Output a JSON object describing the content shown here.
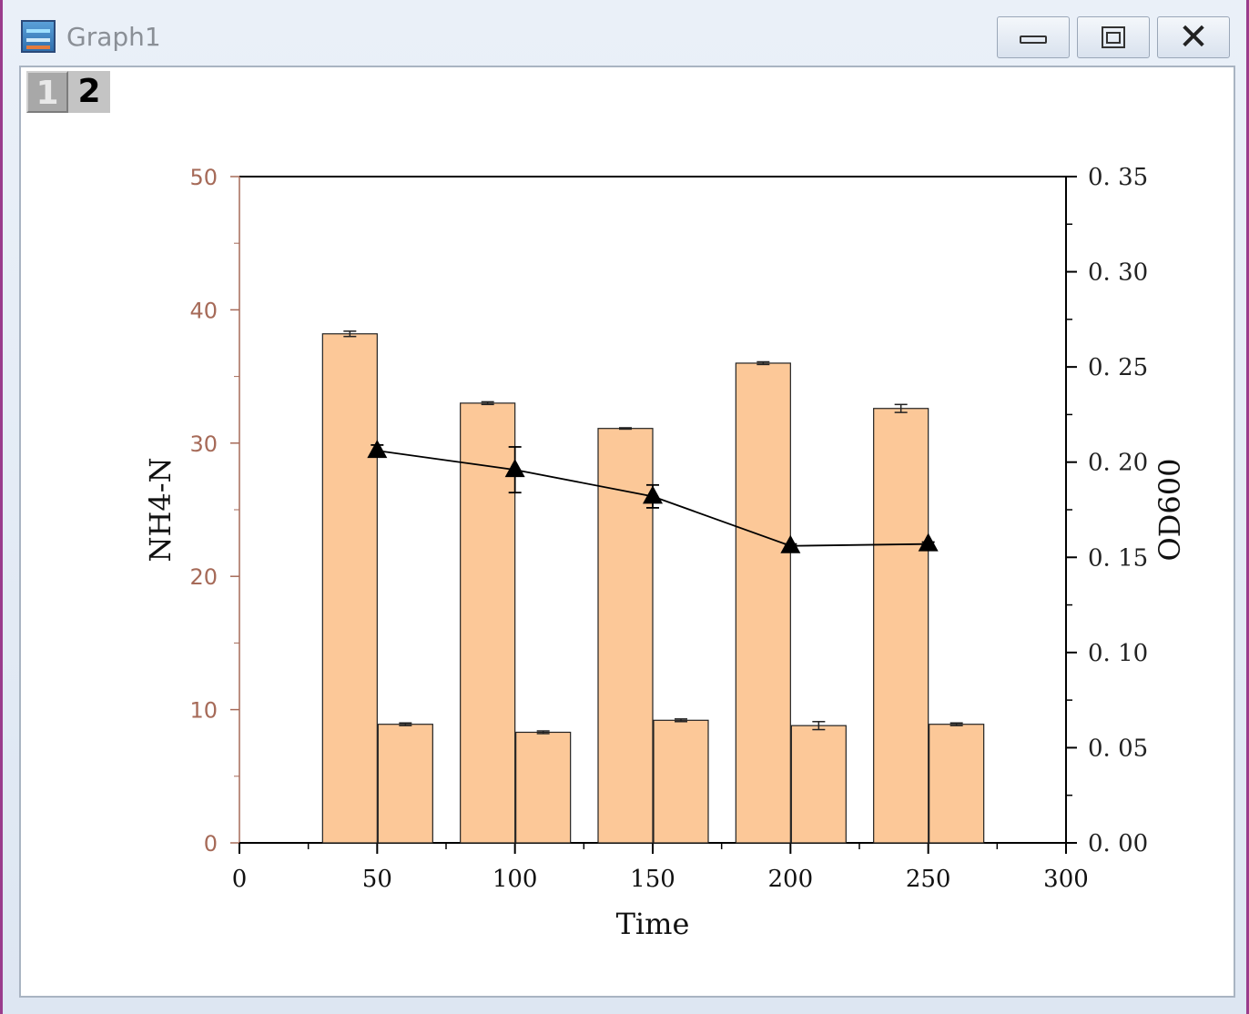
{
  "window": {
    "title": "Graph1",
    "icon": "graph-window-icon",
    "buttons": {
      "minimize": "minimize-icon",
      "maximize": "maximize-icon",
      "close": "close-icon"
    }
  },
  "layers": {
    "tab1": "1",
    "tab2": "2"
  },
  "chart_data": {
    "type": "bar",
    "x": [
      50,
      100,
      150,
      200,
      250
    ],
    "xlabel": "Time",
    "xlim": [
      0,
      300
    ],
    "xticks": [
      "0",
      "50",
      "100",
      "150",
      "200",
      "250",
      "300"
    ],
    "ylabel_left": "NH4-N",
    "ylim_left": [
      0,
      50
    ],
    "yticks_left": [
      "0",
      "10",
      "20",
      "30",
      "40",
      "50"
    ],
    "ylabel_right": "OD600",
    "ylim_right": [
      0,
      0.35
    ],
    "yticks_right": [
      "0. 00",
      "0. 05",
      "0. 10",
      "0. 15",
      "0. 20",
      "0. 25",
      "0. 30",
      "0. 35"
    ],
    "bar_color": "#fcc898",
    "bar_series": [
      {
        "values": [
          38.2,
          33.0,
          31.1,
          36.0,
          32.6
        ],
        "errors": [
          0.2,
          0.1,
          0.05,
          0.1,
          0.3
        ]
      },
      {
        "values": [
          8.9,
          8.3,
          9.2,
          8.8,
          8.9
        ],
        "errors": [
          0.1,
          0.1,
          0.1,
          0.3,
          0.1
        ]
      }
    ],
    "line_series": {
      "axis": "right",
      "marker": "triangle",
      "values": [
        0.206,
        0.196,
        0.182,
        0.156,
        0.157
      ],
      "errors": [
        0.003,
        0.012,
        0.006,
        0.001,
        0.001
      ]
    }
  }
}
